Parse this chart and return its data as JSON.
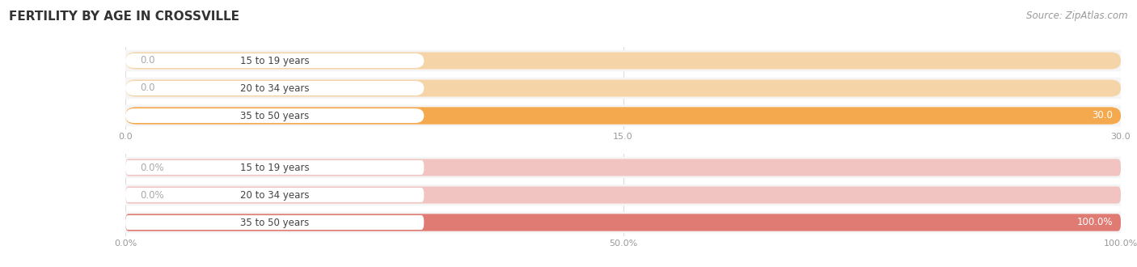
{
  "title": "FERTILITY BY AGE IN CROSSVILLE",
  "source": "Source: ZipAtlas.com",
  "top_chart": {
    "categories": [
      "15 to 19 years",
      "20 to 34 years",
      "35 to 50 years"
    ],
    "values": [
      0.0,
      0.0,
      30.0
    ],
    "max_value": 30.0,
    "xticks": [
      0.0,
      15.0,
      30.0
    ],
    "xtick_labels": [
      "0.0",
      "15.0",
      "30.0"
    ],
    "bar_color_full": "#F5A94E",
    "bar_color_empty": "#F5D5A8",
    "value_label_color_inside": "#ffffff",
    "value_label_color_outside": "#aaaaaa"
  },
  "bottom_chart": {
    "categories": [
      "15 to 19 years",
      "20 to 34 years",
      "35 to 50 years"
    ],
    "values": [
      0.0,
      0.0,
      100.0
    ],
    "max_value": 100.0,
    "xticks": [
      0.0,
      50.0,
      100.0
    ],
    "xtick_labels": [
      "0.0%",
      "50.0%",
      "100.0%"
    ],
    "bar_color_full": "#E07B74",
    "bar_color_empty": "#F2C4C1",
    "value_label_color_inside": "#ffffff",
    "value_label_color_outside": "#aaaaaa"
  },
  "fig_bg_color": "#ffffff",
  "row_bg_color": "#f0f0f0",
  "title_fontsize": 11,
  "label_fontsize": 8.5,
  "tick_fontsize": 8,
  "source_fontsize": 8.5
}
